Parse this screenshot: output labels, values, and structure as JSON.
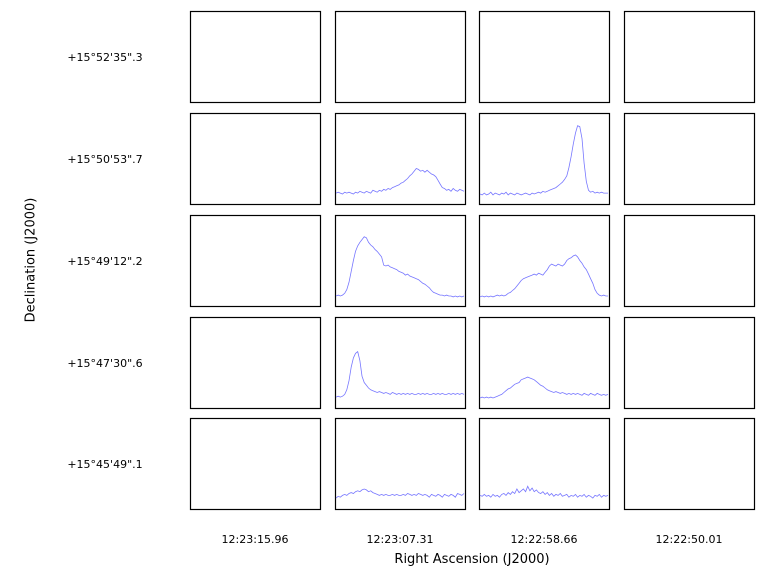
{
  "chart_data": {
    "type": "line",
    "title": "",
    "xlabel": "Right Ascension (J2000)",
    "ylabel": "Declination (J2000)",
    "columns": [
      "12:23:15.96",
      "12:23:07.31",
      "12:22:58.66",
      "12:22:50.01"
    ],
    "rows": [
      "+15°52'35\".3",
      "+15°50'53\".7",
      "+15°49'12\".2",
      "+15°47'30\".6",
      "+15°45'49\".1"
    ],
    "line_color": "#7777ff",
    "channel_range": [
      0,
      60
    ],
    "intensity_range": [
      0,
      1
    ],
    "spectra": [
      {
        "row": 1,
        "col": 1,
        "values": [
          0.12,
          0.13,
          0.12,
          0.11,
          0.13,
          0.12,
          0.13,
          0.12,
          0.11,
          0.13,
          0.12,
          0.14,
          0.13,
          0.12,
          0.14,
          0.13,
          0.12,
          0.15,
          0.14,
          0.13,
          0.15,
          0.14,
          0.16,
          0.15,
          0.17,
          0.16,
          0.18,
          0.19,
          0.2,
          0.21,
          0.23,
          0.24,
          0.26,
          0.28,
          0.31,
          0.33,
          0.36,
          0.39,
          0.38,
          0.36,
          0.37,
          0.35,
          0.37,
          0.35,
          0.33,
          0.32,
          0.3,
          0.26,
          0.22,
          0.18,
          0.17,
          0.15,
          0.16,
          0.14,
          0.17,
          0.15,
          0.14,
          0.16,
          0.15,
          0.14
        ]
      },
      {
        "row": 1,
        "col": 2,
        "values": [
          0.11,
          0.1,
          0.12,
          0.1,
          0.11,
          0.13,
          0.1,
          0.12,
          0.11,
          0.1,
          0.12,
          0.11,
          0.13,
          0.1,
          0.12,
          0.11,
          0.1,
          0.12,
          0.11,
          0.1,
          0.11,
          0.12,
          0.11,
          0.1,
          0.12,
          0.11,
          0.12,
          0.13,
          0.12,
          0.14,
          0.13,
          0.14,
          0.15,
          0.16,
          0.17,
          0.18,
          0.2,
          0.22,
          0.24,
          0.27,
          0.31,
          0.4,
          0.52,
          0.66,
          0.78,
          0.86,
          0.85,
          0.72,
          0.45,
          0.25,
          0.15,
          0.13,
          0.14,
          0.12,
          0.13,
          0.12,
          0.13,
          0.12,
          0.12,
          0.12
        ]
      },
      {
        "row": 2,
        "col": 1,
        "values": [
          0.11,
          0.12,
          0.11,
          0.12,
          0.14,
          0.18,
          0.26,
          0.38,
          0.5,
          0.6,
          0.66,
          0.7,
          0.73,
          0.76,
          0.75,
          0.7,
          0.67,
          0.65,
          0.62,
          0.6,
          0.57,
          0.54,
          0.45,
          0.44,
          0.45,
          0.43,
          0.42,
          0.41,
          0.4,
          0.38,
          0.37,
          0.36,
          0.34,
          0.35,
          0.33,
          0.32,
          0.31,
          0.3,
          0.29,
          0.27,
          0.25,
          0.24,
          0.22,
          0.2,
          0.17,
          0.15,
          0.14,
          0.13,
          0.12,
          0.12,
          0.11,
          0.12,
          0.11,
          0.11,
          0.1,
          0.11,
          0.1,
          0.11,
          0.1,
          0.11
        ]
      },
      {
        "row": 2,
        "col": 2,
        "values": [
          0.1,
          0.11,
          0.1,
          0.11,
          0.1,
          0.11,
          0.1,
          0.11,
          0.12,
          0.11,
          0.12,
          0.11,
          0.12,
          0.14,
          0.15,
          0.17,
          0.19,
          0.22,
          0.25,
          0.28,
          0.3,
          0.31,
          0.32,
          0.33,
          0.34,
          0.35,
          0.34,
          0.36,
          0.35,
          0.34,
          0.37,
          0.4,
          0.44,
          0.46,
          0.45,
          0.44,
          0.46,
          0.45,
          0.44,
          0.46,
          0.5,
          0.52,
          0.53,
          0.55,
          0.56,
          0.54,
          0.5,
          0.47,
          0.43,
          0.4,
          0.35,
          0.3,
          0.25,
          0.18,
          0.14,
          0.12,
          0.11,
          0.12,
          0.11,
          0.11
        ]
      },
      {
        "row": 3,
        "col": 1,
        "values": [
          0.12,
          0.13,
          0.12,
          0.13,
          0.15,
          0.2,
          0.3,
          0.45,
          0.55,
          0.6,
          0.62,
          0.52,
          0.35,
          0.28,
          0.25,
          0.22,
          0.2,
          0.19,
          0.18,
          0.17,
          0.18,
          0.17,
          0.16,
          0.17,
          0.16,
          0.15,
          0.17,
          0.16,
          0.15,
          0.16,
          0.15,
          0.16,
          0.15,
          0.16,
          0.15,
          0.16,
          0.15,
          0.15,
          0.16,
          0.15,
          0.16,
          0.15,
          0.16,
          0.15,
          0.15,
          0.16,
          0.15,
          0.16,
          0.15,
          0.16,
          0.15,
          0.15,
          0.16,
          0.15,
          0.16,
          0.15,
          0.16,
          0.15,
          0.16,
          0.15
        ]
      },
      {
        "row": 3,
        "col": 2,
        "values": [
          0.11,
          0.12,
          0.11,
          0.12,
          0.11,
          0.12,
          0.11,
          0.12,
          0.13,
          0.14,
          0.15,
          0.17,
          0.19,
          0.21,
          0.22,
          0.24,
          0.26,
          0.27,
          0.28,
          0.31,
          0.32,
          0.33,
          0.34,
          0.33,
          0.32,
          0.31,
          0.29,
          0.27,
          0.25,
          0.24,
          0.22,
          0.2,
          0.19,
          0.18,
          0.17,
          0.18,
          0.17,
          0.16,
          0.17,
          0.16,
          0.15,
          0.16,
          0.15,
          0.16,
          0.15,
          0.16,
          0.15,
          0.14,
          0.16,
          0.15,
          0.14,
          0.16,
          0.15,
          0.14,
          0.16,
          0.15,
          0.14,
          0.15,
          0.14,
          0.15
        ]
      },
      {
        "row": 4,
        "col": 1,
        "values": [
          0.12,
          0.14,
          0.13,
          0.15,
          0.16,
          0.15,
          0.17,
          0.18,
          0.17,
          0.19,
          0.2,
          0.19,
          0.21,
          0.22,
          0.21,
          0.19,
          0.2,
          0.18,
          0.17,
          0.16,
          0.15,
          0.16,
          0.15,
          0.16,
          0.15,
          0.15,
          0.16,
          0.15,
          0.16,
          0.15,
          0.15,
          0.16,
          0.15,
          0.17,
          0.16,
          0.15,
          0.16,
          0.15,
          0.17,
          0.16,
          0.15,
          0.16,
          0.15,
          0.13,
          0.16,
          0.15,
          0.14,
          0.16,
          0.15,
          0.13,
          0.16,
          0.15,
          0.14,
          0.16,
          0.15,
          0.13,
          0.17,
          0.16,
          0.15,
          0.17
        ]
      },
      {
        "row": 4,
        "col": 2,
        "values": [
          0.15,
          0.14,
          0.16,
          0.14,
          0.15,
          0.13,
          0.16,
          0.14,
          0.15,
          0.13,
          0.16,
          0.17,
          0.15,
          0.18,
          0.16,
          0.19,
          0.17,
          0.22,
          0.18,
          0.2,
          0.22,
          0.19,
          0.25,
          0.2,
          0.23,
          0.19,
          0.21,
          0.18,
          0.17,
          0.19,
          0.16,
          0.18,
          0.15,
          0.17,
          0.14,
          0.16,
          0.15,
          0.17,
          0.14,
          0.15,
          0.16,
          0.13,
          0.15,
          0.14,
          0.16,
          0.13,
          0.15,
          0.14,
          0.16,
          0.13,
          0.15,
          0.14,
          0.12,
          0.15,
          0.14,
          0.16,
          0.13,
          0.15,
          0.14,
          0.15
        ]
      }
    ]
  }
}
